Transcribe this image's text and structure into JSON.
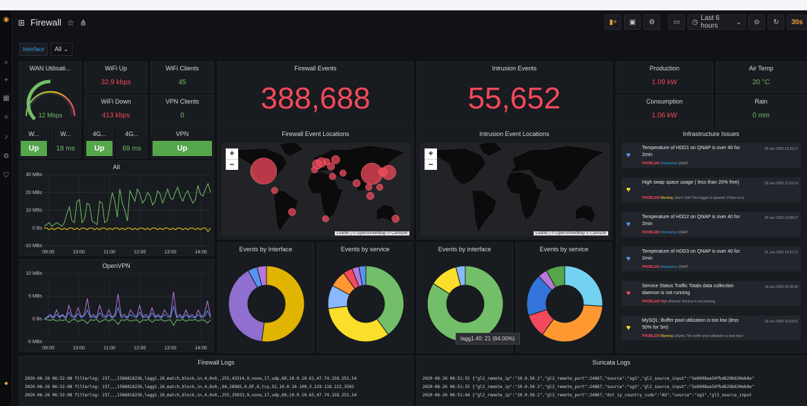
{
  "dashboard": {
    "title": "Firewall",
    "time_range": "Last 6 hours",
    "refresh": "30s",
    "variable_label": "Interface",
    "variable_value": "All"
  },
  "panels": {
    "wan_util": {
      "title": "WAN Utilisati...",
      "value": "12 Mbps",
      "gauge_fraction": 0.5
    },
    "wifi_up": {
      "title": "WiFi Up",
      "value": "32.9 kbps"
    },
    "wifi_clients": {
      "title": "WiFi Clients",
      "value": "45"
    },
    "wifi_down": {
      "title": "WiFi Down",
      "value": "413 kbps"
    },
    "vpn_clients": {
      "title": "VPN Clients",
      "value": "0"
    },
    "small_status": [
      {
        "title": "W...",
        "value": "Up"
      },
      {
        "title": "W...",
        "value": "18 ms"
      },
      {
        "title": "4G...",
        "value": "Up"
      },
      {
        "title": "4G...",
        "value": "69 ms"
      },
      {
        "title": "VPN",
        "value": "Up"
      }
    ],
    "firewall_events": {
      "title": "Firewall Events",
      "value": "388,688"
    },
    "intrusion_events": {
      "title": "Intrusion Events",
      "value": "55,652"
    },
    "production": {
      "title": "Production",
      "value": "1.09 kW"
    },
    "air_temp": {
      "title": "Air Temp",
      "value": "20 °C"
    },
    "consumption": {
      "title": "Consumption",
      "value": "1.06 kW"
    },
    "rain": {
      "title": "Rain",
      "value": "0 mm"
    },
    "fw_locations": {
      "title": "Firewall Event Locations",
      "attribution": "Leaflet | © OpenStreetMap © CartoDB"
    },
    "ids_locations": {
      "title": "Intrusion Event Locations",
      "attribution": "Leaflet | © OpenStreetMap © CartoDB"
    },
    "all_graph": {
      "title": "All"
    },
    "openvpn_graph": {
      "title": "OpenVPN"
    },
    "events_by_interface_1": {
      "title": "Events by Interface"
    },
    "events_by_service_1": {
      "title": "Events by service"
    },
    "events_by_interface_2": {
      "title": "Events by interface",
      "tooltip": "lagg1.40: 21 (84.00%)"
    },
    "events_by_service_2": {
      "title": "Events by service"
    },
    "infra": {
      "title": "Infrastructure Issues"
    },
    "firewall_logs": {
      "title": "Firewall Logs"
    },
    "suricata_logs": {
      "title": "Suricata Logs"
    }
  },
  "issues": [
    {
      "title": "Temperature of HDD1 on QNAP is over 40 for 2min",
      "host": "QNAP",
      "status": "PROBLEM",
      "severity": "Information",
      "date": "26 Jun 2020 13:33:17",
      "icon_color": "#5794f2"
    },
    {
      "title": "High swap space usage ( less than 20% free)",
      "host": "Jake's Dell",
      "status": "PROBLEM",
      "severity": "Warning",
      "note": "This trigger is ignored, if there is no swap...",
      "date": "26 Jun 2020 12:52:14",
      "icon_color": "#fade2a"
    },
    {
      "title": "Temperature of HDD2 on QNAP is over 40 for 2min",
      "host": "QNAP",
      "status": "PROBLEM",
      "severity": "Information",
      "date": "25 Jun 2020 13:08:17",
      "icon_color": "#5794f2"
    },
    {
      "title": "Temperature of HDD3 on QNAP is over 40 for 2min",
      "host": "QNAP",
      "status": "PROBLEM",
      "severity": "Information",
      "date": "21 Jun 2020 13:37:17",
      "icon_color": "#5794f2"
    },
    {
      "title": "Service Status Traffic Totals data collection daemon is not running",
      "host": "pfSense",
      "status": "PROBLEM",
      "severity": "High",
      "note": "Service is not running",
      "date": "19 Jun 2020 15:16:42",
      "icon_color": "#f2495c"
    },
    {
      "title": "MySQL: Buffer pool utilization is too low (less 50% for 5m)",
      "host": "Ubuntu",
      "status": "PROBLEM",
      "severity": "Warning",
      "note": "The buffer pool utilization is less than 50...",
      "date": "19 Jun 2020 10:33:51",
      "icon_color": "#fade2a"
    }
  ],
  "firewall_logs": [
    "2020-06-26 06:52:08  filterlog: 237,,,1586818236,lagg1.10,match,block,in,4,0x0,,255,43314,0,none,17,udp,60,10.0.10.61,47.74.158.252,54",
    "2020-06-26 06:52:08  filterlog: 237,,,1586818236,lagg1.10,match,block,in,4,0x0,,64,28985,0,DF,6,tcp,52,10.0.10.100,3.229.118.222,3502",
    "2020-06-26 06:52:08  filterlog: 237,,,1586818236,lagg1.10,match,block,in,4,0x0,,255,25033,0,none,17,udp,60,10.0.10.65,47.74.158.252,54"
  ],
  "suricata_logs": [
    "2020-06-26 06:51:55  {\"gl2_remote_ip\":\"10.0.50.1\",\"gl2_remote_port\":24867,\"source\":\"sg1\",\"gl2_source_input\":\"5e8908ae50fbd629b630eb0e\"",
    "2020-06-26 06:51:55  {\"gl2_remote_ip\":\"10.0.50.1\",\"gl2_remote_port\":24867,\"source\":\"sg1\",\"gl2_source_input\":\"5e8908ae50fbd629b630eb0e\"",
    "2020-06-26 06:51:44  {\"gl2_remote_ip\":\"10.0.50.1\",\"gl2_remote_port\":24867,\"dst_ip_country_code\":\"AU\",\"source\":\"sg1\",\"gl2_source_input"
  ],
  "chart_data": [
    {
      "type": "line",
      "title": "All",
      "x_ticks": [
        "09:00",
        "10:00",
        "11:00",
        "12:00",
        "13:00",
        "14:00"
      ],
      "y_ticks": [
        "30 MBs",
        "20 MBs",
        "10 MBs",
        "0 Bs",
        "-10 MBs"
      ],
      "ylim": [
        -10,
        30
      ],
      "series": [
        {
          "color": "#73bf69",
          "values": [
            1,
            2,
            3,
            1,
            2,
            3,
            2,
            1,
            3,
            8,
            12,
            4,
            3,
            15,
            16,
            3,
            5,
            14,
            13,
            4,
            3,
            2,
            15,
            14,
            3,
            4,
            12,
            20,
            15,
            6,
            22,
            14,
            10,
            4,
            21,
            18,
            15,
            22,
            19,
            14,
            16,
            20,
            18,
            13,
            15,
            21,
            19,
            14,
            18,
            22,
            17,
            16,
            20,
            23,
            18,
            15,
            19,
            21,
            17,
            14,
            16,
            24,
            19,
            18,
            22,
            25,
            20
          ]
        },
        {
          "color": "#f2cc0c",
          "values": [
            0,
            0,
            -1,
            0,
            -1,
            0,
            0,
            -1,
            0,
            -1,
            0,
            0,
            -1,
            0,
            -1,
            0,
            0,
            -1,
            0,
            0,
            -1,
            0,
            -1,
            0,
            0,
            -1,
            0,
            -1,
            0,
            0,
            -1,
            0,
            -1,
            0,
            0,
            -1,
            0,
            -1,
            0,
            0,
            -1,
            0,
            -1,
            0,
            0,
            -1,
            0,
            -1,
            0,
            0,
            -1,
            0,
            -1,
            0,
            0,
            -1,
            0,
            -1,
            0,
            0,
            -1,
            0,
            -1,
            0,
            0,
            -2,
            0
          ]
        }
      ]
    },
    {
      "type": "line",
      "title": "OpenVPN",
      "x_ticks": [
        "09:00",
        "10:00",
        "11:00",
        "12:00",
        "13:00",
        "14:00"
      ],
      "y_ticks": [
        "10 MBs",
        "5 MBs",
        "0 Bs",
        "-5 MBs"
      ],
      "ylim": [
        -5,
        10
      ],
      "series": [
        {
          "color": "#b877d9",
          "values": [
            0,
            0.5,
            1,
            0.3,
            2,
            0.5,
            1,
            0.2,
            3,
            0.8,
            0.5,
            2.5,
            0.5,
            1,
            4.5,
            0.5,
            1,
            0.3,
            3,
            1,
            0.5,
            2,
            0.4,
            1,
            5.5,
            0.6,
            1,
            0.3,
            2,
            1,
            0.5,
            3,
            0.5,
            1,
            0.3,
            2.5,
            0.5,
            1,
            0.4,
            2,
            1,
            0.5,
            6,
            0.5,
            1,
            0.3,
            2,
            0.5,
            1,
            0.3,
            2,
            0.5,
            1,
            4,
            0.5
          ]
        },
        {
          "color": "#5794f2",
          "values": [
            0,
            0.3,
            0.6,
            0.2,
            1,
            0.3,
            0.8,
            0.1,
            1.5,
            0.4,
            0.2,
            1.2,
            0.3,
            0.6,
            2,
            0.3,
            0.5,
            0.2,
            1.4,
            0.5,
            0.2,
            1,
            0.2,
            0.6,
            2.5,
            0.3,
            0.5,
            0.2,
            1,
            0.5,
            0.3,
            1.5,
            0.3,
            0.5,
            0.2,
            1.3,
            0.3,
            0.6,
            0.2,
            1,
            0.5,
            0.3,
            2.8,
            0.3,
            0.5,
            0.2,
            1,
            0.3,
            0.5,
            0.2,
            1,
            0.3,
            0.5,
            1.8,
            0.3
          ]
        },
        {
          "color": "#73bf69",
          "values": [
            0,
            -0.2,
            -0.3,
            -0.1,
            -0.5,
            -0.2,
            -0.4,
            -0.1,
            -0.8,
            -0.2,
            -0.1,
            -0.6,
            -0.2,
            -0.3,
            -1,
            -0.2,
            -0.3,
            -0.1,
            -0.7,
            -0.3,
            -0.1,
            -0.5,
            -0.1,
            -0.3,
            -1.2,
            -0.2,
            -0.3,
            -0.1,
            -0.5,
            -0.3,
            -0.2,
            -0.8,
            -0.2,
            -0.3,
            -0.1,
            -0.7,
            -0.2,
            -0.3,
            -0.1,
            -0.5,
            -0.3,
            -0.2,
            -1.4,
            -0.2,
            -0.3,
            -0.1,
            -0.5,
            -0.2,
            -0.3,
            -0.1,
            -0.5,
            -0.2,
            -0.3,
            -0.9,
            -0.2
          ]
        }
      ]
    },
    {
      "type": "pie",
      "title": "Events by Interface",
      "slices": [
        {
          "value": 52,
          "color": "#e0b400"
        },
        {
          "value": 40,
          "color": "#8f6fcf"
        },
        {
          "value": 4,
          "color": "#5794f2"
        },
        {
          "value": 4,
          "color": "#b877d9"
        }
      ]
    },
    {
      "type": "pie",
      "title": "Events by service",
      "slices": [
        {
          "value": 40,
          "color": "#73bf69"
        },
        {
          "value": 33,
          "color": "#fade2a"
        },
        {
          "value": 10,
          "color": "#8ab8ff"
        },
        {
          "value": 7,
          "color": "#ff9830"
        },
        {
          "value": 4,
          "color": "#f2495c"
        },
        {
          "value": 3,
          "color": "#b877d9"
        },
        {
          "value": 3,
          "color": "#5794f2"
        }
      ]
    },
    {
      "type": "pie",
      "title": "Events by interface",
      "slices": [
        {
          "value": 84,
          "color": "#73bf69"
        },
        {
          "value": 12,
          "color": "#fade2a"
        },
        {
          "value": 4,
          "color": "#8ab8ff"
        }
      ]
    },
    {
      "type": "pie",
      "title": "Events by service",
      "slices": [
        {
          "value": 26,
          "color": "#73d2f2"
        },
        {
          "value": 34,
          "color": "#ff9830"
        },
        {
          "value": 10,
          "color": "#f2495c"
        },
        {
          "value": 18,
          "color": "#3274d9"
        },
        {
          "value": 4,
          "color": "#b877d9"
        },
        {
          "value": 8,
          "color": "#56a64b"
        }
      ]
    }
  ],
  "map_points": {
    "firewall": [
      {
        "lon": -100,
        "lat": 38,
        "weight": 5
      },
      {
        "lon": 106,
        "lat": 34,
        "weight": 4
      },
      {
        "lon": 138,
        "lat": 36,
        "weight": 2.5
      },
      {
        "lon": 2,
        "lat": 48,
        "weight": 1.5
      },
      {
        "lon": 10,
        "lat": 51,
        "weight": 1.5
      },
      {
        "lon": 37,
        "lat": 55,
        "weight": 1.2
      },
      {
        "lon": 28,
        "lat": 45,
        "weight": 1
      },
      {
        "lon": 127,
        "lat": 37,
        "weight": 1.2
      },
      {
        "lon": 77,
        "lat": 20,
        "weight": 1
      },
      {
        "lon": 103,
        "lat": 1,
        "weight": 1
      },
      {
        "lon": -46,
        "lat": -23,
        "weight": 1
      },
      {
        "lon": -79,
        "lat": 9,
        "weight": 0.8
      },
      {
        "lon": 151,
        "lat": -33,
        "weight": 1
      },
      {
        "lon": 18,
        "lat": -33,
        "weight": 0.8
      },
      {
        "lon": 31,
        "lat": 30,
        "weight": 0.8
      },
      {
        "lon": 51,
        "lat": 35,
        "weight": 0.8
      },
      {
        "lon": 121,
        "lat": 14,
        "weight": 0.8
      },
      {
        "lon": -3,
        "lat": 40,
        "weight": 0.8
      },
      {
        "lon": 20,
        "lat": 52,
        "weight": 0.8
      },
      {
        "lon": 100,
        "lat": 14,
        "weight": 0.8
      }
    ]
  }
}
